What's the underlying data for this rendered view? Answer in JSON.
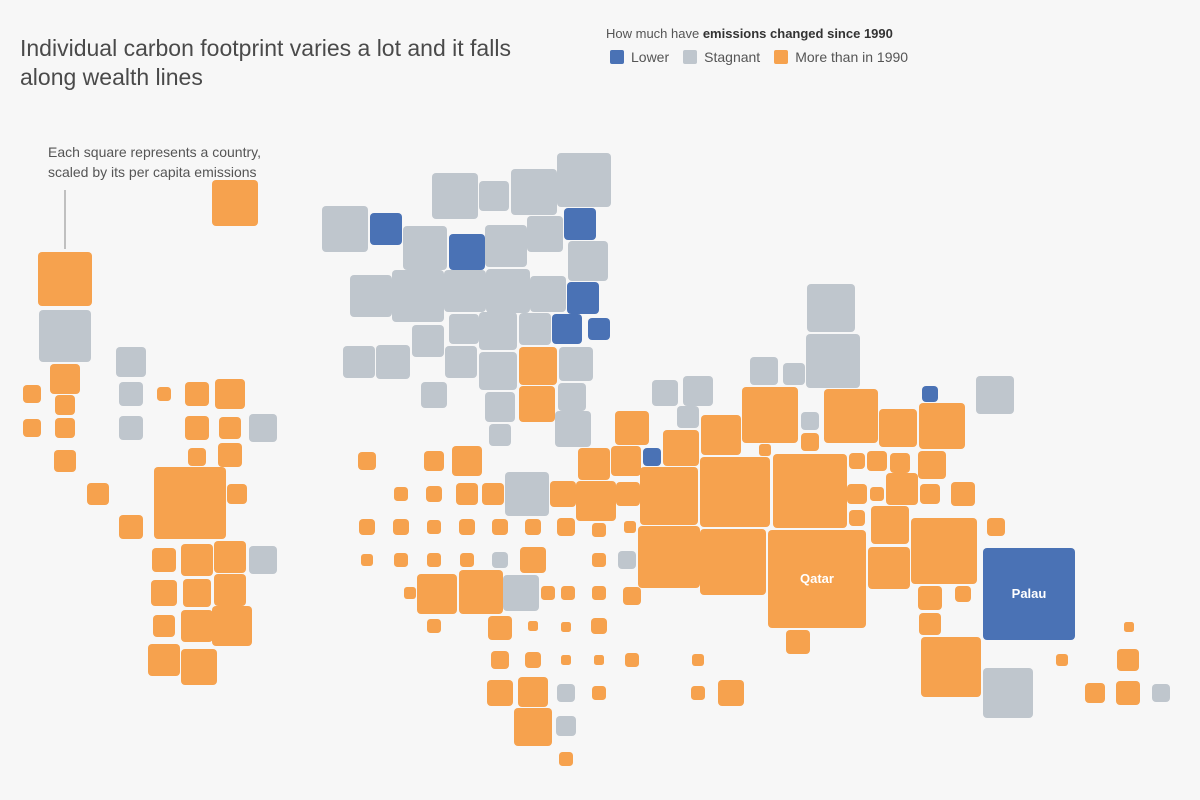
{
  "title": "Individual carbon footprint varies a lot and it falls along wealth lines",
  "legend": {
    "question_prefix": "How much have ",
    "question_bold": "emissions changed since 1990",
    "items": [
      {
        "label": "Lower",
        "color": "#4a72b5"
      },
      {
        "label": "Stagnant",
        "color": "#bfc6cd"
      },
      {
        "label": "More than in 1990",
        "color": "#f6a24e"
      }
    ]
  },
  "annotation": {
    "line1": "Each square represents a country,",
    "line2": "scaled by its per capita emissions"
  },
  "chart_data": {
    "type": "tile-grid map (squares)",
    "encoding": "square area ∝ per capita emissions; color = change in emissions since 1990",
    "categories": [
      "Lower",
      "Stagnant",
      "More than in 1990"
    ],
    "labeled_countries": [
      {
        "name": "Qatar",
        "change": "More than in 1990"
      },
      {
        "name": "Palau",
        "change": "Lower"
      }
    ]
  }
}
